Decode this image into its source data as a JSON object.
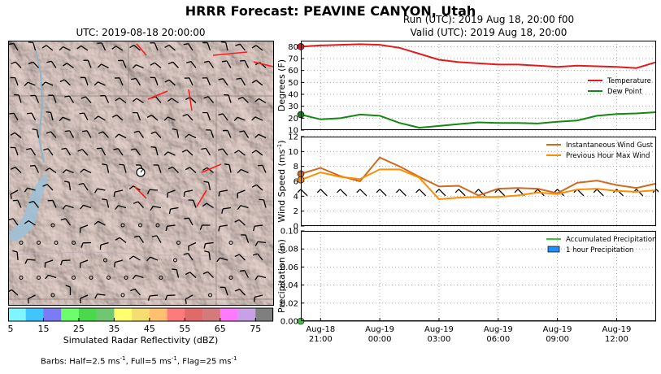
{
  "title": "HRRR Forecast: PEAVINE CANYON, Utah",
  "map": {
    "valid_time": "UTC: 2019-08-18 20:00:00",
    "colorbar": {
      "label": "Simulated Radar Reflectivity (dBZ)",
      "ticks": [
        "5",
        "15",
        "25",
        "35",
        "45",
        "55",
        "65",
        "75"
      ],
      "colors": [
        "#7ff5ff",
        "#3fc6ff",
        "#7b7bf5",
        "#6bff6b",
        "#4cd84c",
        "#6fc76f",
        "#ffff70",
        "#f5de6d",
        "#ffc06f",
        "#ff7a7a",
        "#e06a6a",
        "#d57a7a",
        "#ff7aff",
        "#c8a0e6",
        "#7f7f7f"
      ]
    },
    "barbs_note": "Barbs: Half=2.5 ms",
    "barbs_note_sup1": "-1",
    "barbs_note_mid": ", Full=5 ms",
    "barbs_note_sup2": "-1",
    "barbs_note_mid2": ", Flag=25 ms",
    "barbs_note_sup3": "-1"
  },
  "run": {
    "run_label": "Run (UTC): 2019 Aug 18, 20:00 f00",
    "valid_label": "Valid (UTC): 2019 Aug 18, 20:00"
  },
  "chart_data": [
    {
      "type": "line",
      "ylabel": "Degrees (F)",
      "ylim": [
        10,
        85
      ],
      "yticks": [
        10,
        20,
        30,
        40,
        50,
        60,
        70,
        80
      ],
      "xlim": [
        0,
        18
      ],
      "grid": true,
      "legend_position": "right",
      "series": [
        {
          "name": "Temperature",
          "color": "#e41a1a",
          "x": [
            0,
            1,
            2,
            3,
            4,
            5,
            6,
            7,
            8,
            9,
            10,
            11,
            12,
            13,
            14,
            15,
            16,
            17,
            18
          ],
          "values": [
            80,
            81,
            81.5,
            82,
            81.5,
            79,
            74,
            69,
            67,
            66,
            65,
            65,
            64,
            63,
            64,
            63.5,
            63,
            62,
            67
          ]
        },
        {
          "name": "Dew Point",
          "color": "#118a11",
          "x": [
            0,
            1,
            2,
            3,
            4,
            5,
            6,
            7,
            8,
            9,
            10,
            11,
            12,
            13,
            14,
            15,
            16,
            17,
            18
          ],
          "values": [
            23,
            19,
            20,
            23,
            22,
            16,
            12,
            13.5,
            15,
            16.5,
            16,
            16,
            15.5,
            17,
            18,
            22,
            23.5,
            24,
            25
          ]
        }
      ]
    },
    {
      "type": "line",
      "ylabel": "Wind Speed (ms",
      "ylabel_sup": "-1",
      "ylabel_end": ")",
      "ylim": [
        0,
        12
      ],
      "yticks": [
        0,
        2,
        4,
        6,
        8,
        10,
        12
      ],
      "xlim": [
        0,
        18
      ],
      "grid": true,
      "legend_position": "top-right",
      "series": [
        {
          "name": "Instantaneous Wind Gust",
          "color": "#d2691e",
          "x": [
            0,
            1,
            2,
            3,
            4,
            5,
            6,
            7,
            8,
            9,
            10,
            11,
            12,
            13,
            14,
            15,
            16,
            17,
            18
          ],
          "values": [
            7,
            7.8,
            6.7,
            6,
            9.2,
            8,
            6.6,
            5.3,
            5.4,
            4.1,
            5,
            5.1,
            5,
            4.4,
            5.8,
            6.1,
            5.5,
            5.1,
            5.7
          ]
        },
        {
          "name": "Previous Hour Max Wind",
          "color": "#ff8c00",
          "x": [
            0,
            1,
            2,
            3,
            4,
            5,
            6,
            7,
            8,
            9,
            10,
            11,
            12,
            13,
            14,
            15,
            16,
            17,
            18
          ],
          "values": [
            6.2,
            7.2,
            6.6,
            6.3,
            7.6,
            7.6,
            6.5,
            3.6,
            3.8,
            3.9,
            3.9,
            4.1,
            4.5,
            4.3,
            4.9,
            5,
            4.7,
            4.6,
            4.8
          ]
        }
      ]
    },
    {
      "type": "line",
      "ylabel": "Precipitation (in)",
      "ylim": [
        0,
        0.1
      ],
      "yticks": [
        "0.00",
        "0.02",
        "0.04",
        "0.06",
        "0.08",
        "0.10"
      ],
      "xlim": [
        0,
        18
      ],
      "xtick_positions": [
        1,
        4,
        7,
        10,
        13,
        16
      ],
      "xtick_labels": [
        [
          "Aug-18",
          "21:00"
        ],
        [
          "Aug-19",
          "00:00"
        ],
        [
          "Aug-19",
          "03:00"
        ],
        [
          "Aug-19",
          "06:00"
        ],
        [
          "Aug-19",
          "09:00"
        ],
        [
          "Aug-19",
          "12:00"
        ]
      ],
      "grid": true,
      "legend_position": "top-right",
      "series": [
        {
          "name": "Accumulated Precipitation",
          "color": "#32cd32",
          "x": [
            0,
            18
          ],
          "values": [
            0,
            0
          ]
        },
        {
          "name": "1 hour Precipitation",
          "color": "#1e90ff",
          "style": "bar",
          "x": [],
          "values": []
        }
      ]
    }
  ]
}
